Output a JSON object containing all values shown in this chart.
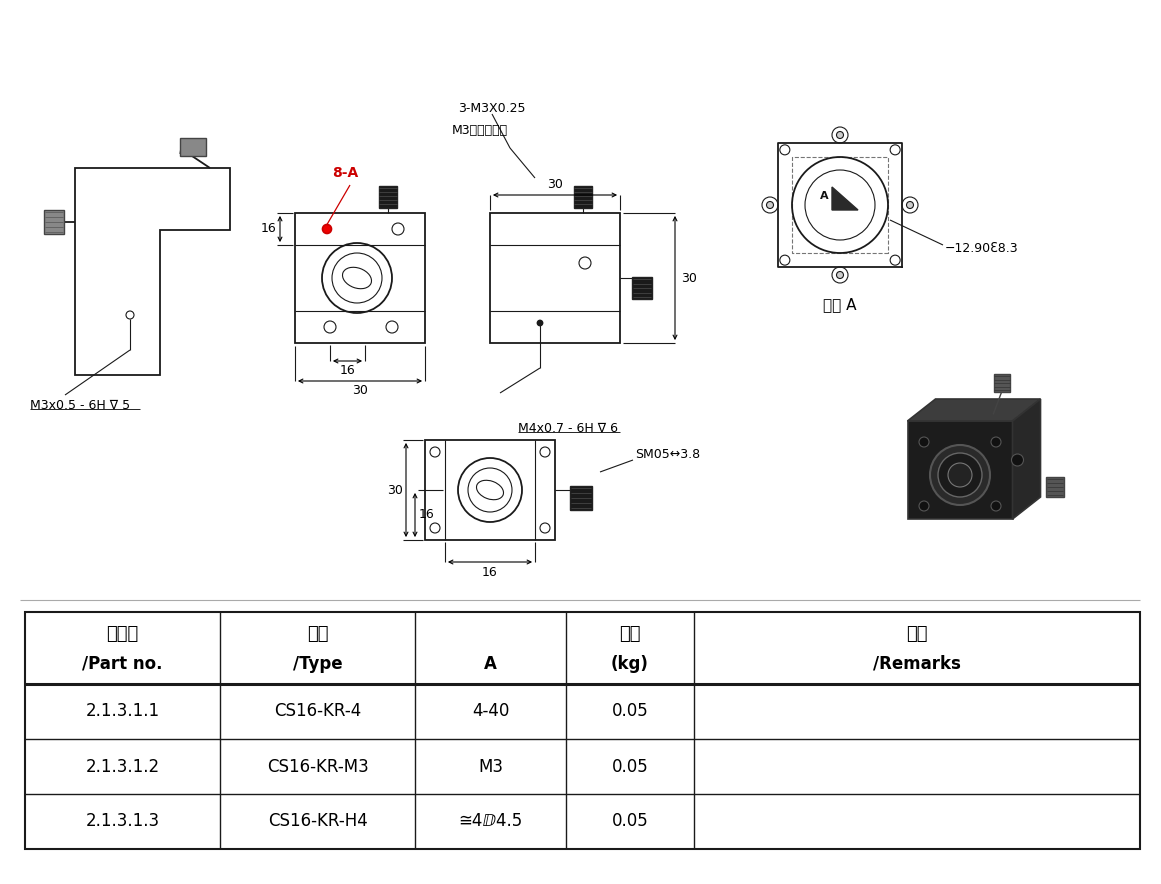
{
  "bg_color": "#ffffff",
  "table_headers_cn": [
    "零件号",
    "型号",
    "",
    "重量",
    "备注"
  ],
  "table_headers_en": [
    "/Part no.",
    "/Type",
    "A",
    "(kg)",
    "/Remarks"
  ],
  "table_rows": [
    [
      "2.1.3.1.1",
      "CS16-KR-4",
      "4-40",
      "0.05",
      ""
    ],
    [
      "2.1.3.1.2",
      "CS16-KR-M3",
      "M3",
      "0.05",
      ""
    ],
    [
      "2.1.3.1.3",
      "CS16-KR-H4",
      "≅4ⅅ4.5",
      "0.05",
      ""
    ]
  ],
  "annotations": {
    "label_8A": "8-A",
    "label_3M3": "3-M3X0.25",
    "label_nylon": "M3尼龙头顶丝",
    "label_M3x05": "M3x0.5 - 6H ∇ 5",
    "label_M4x07": "M4x0.7 - 6H ∇ 6",
    "label_SM05": "SM05↔3.8",
    "label_dia": "−12.90ℇ8.3",
    "label_viewA": "视图 A"
  },
  "text_color": "#000000",
  "red_color": "#cc0000",
  "line_color": "#1a1a1a"
}
